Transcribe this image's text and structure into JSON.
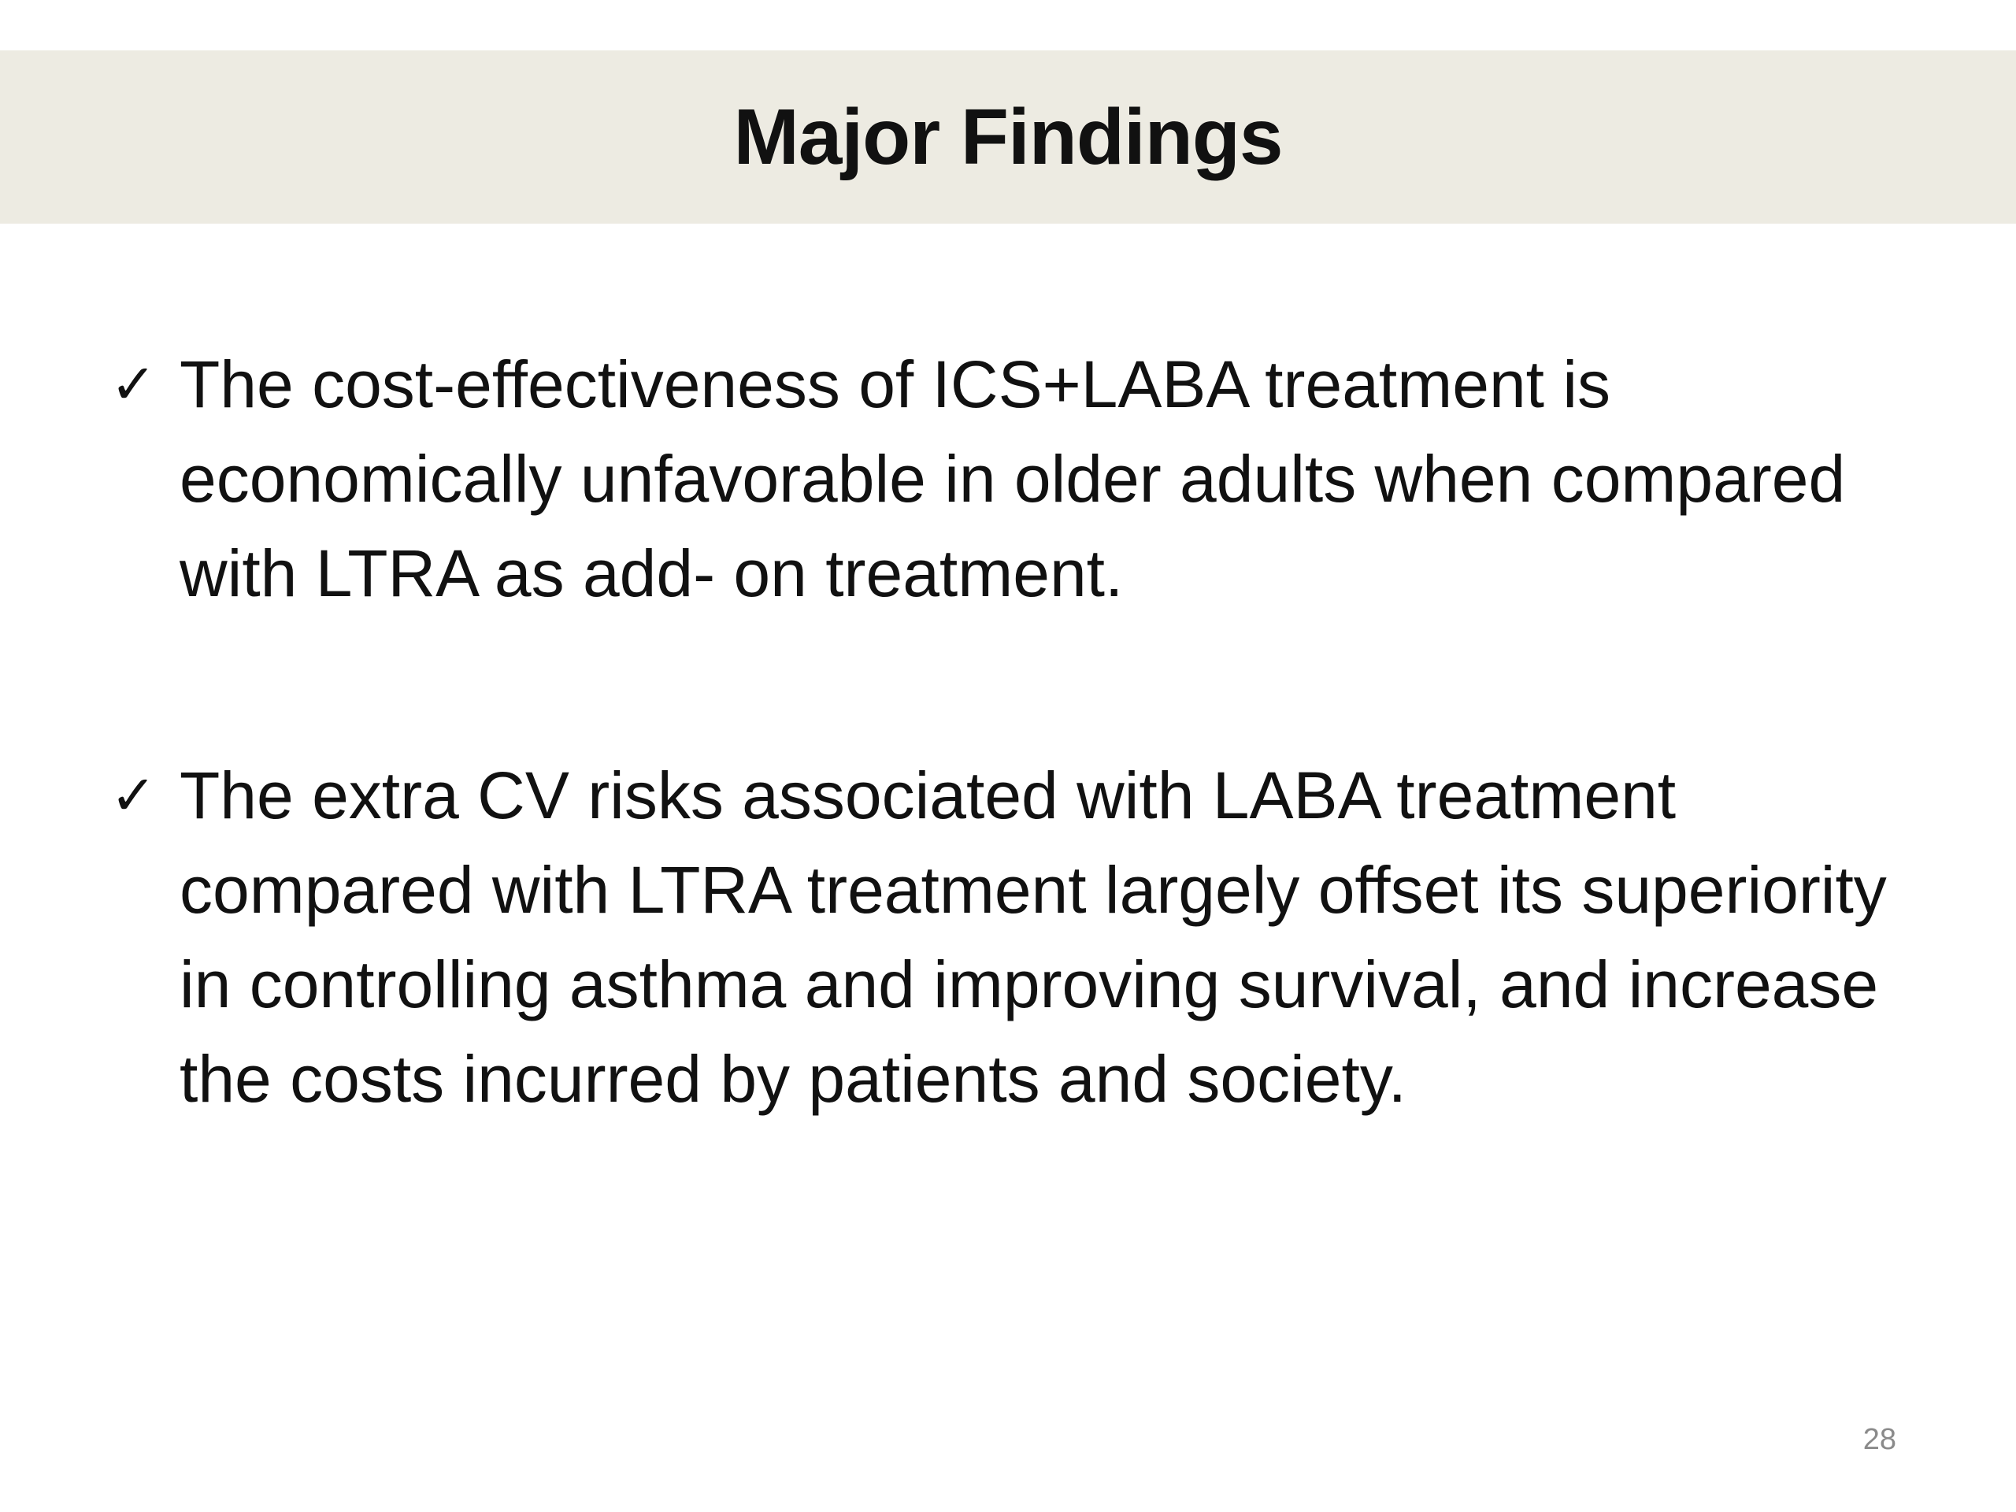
{
  "slide": {
    "title": "Major Findings",
    "bullets": [
      {
        "icon": "check-icon",
        "text": "The cost-effectiveness of ICS+LABA treatment is economically unfavorable in older adults when compared with LTRA as add- on treatment."
      },
      {
        "icon": "check-icon",
        "text": "The extra CV risks associated with LABA treatment compared with LTRA treatment largely offset its superiority in controlling asthma and improving survival, and increase the costs incurred by patients and society."
      }
    ],
    "page_number": "28"
  }
}
